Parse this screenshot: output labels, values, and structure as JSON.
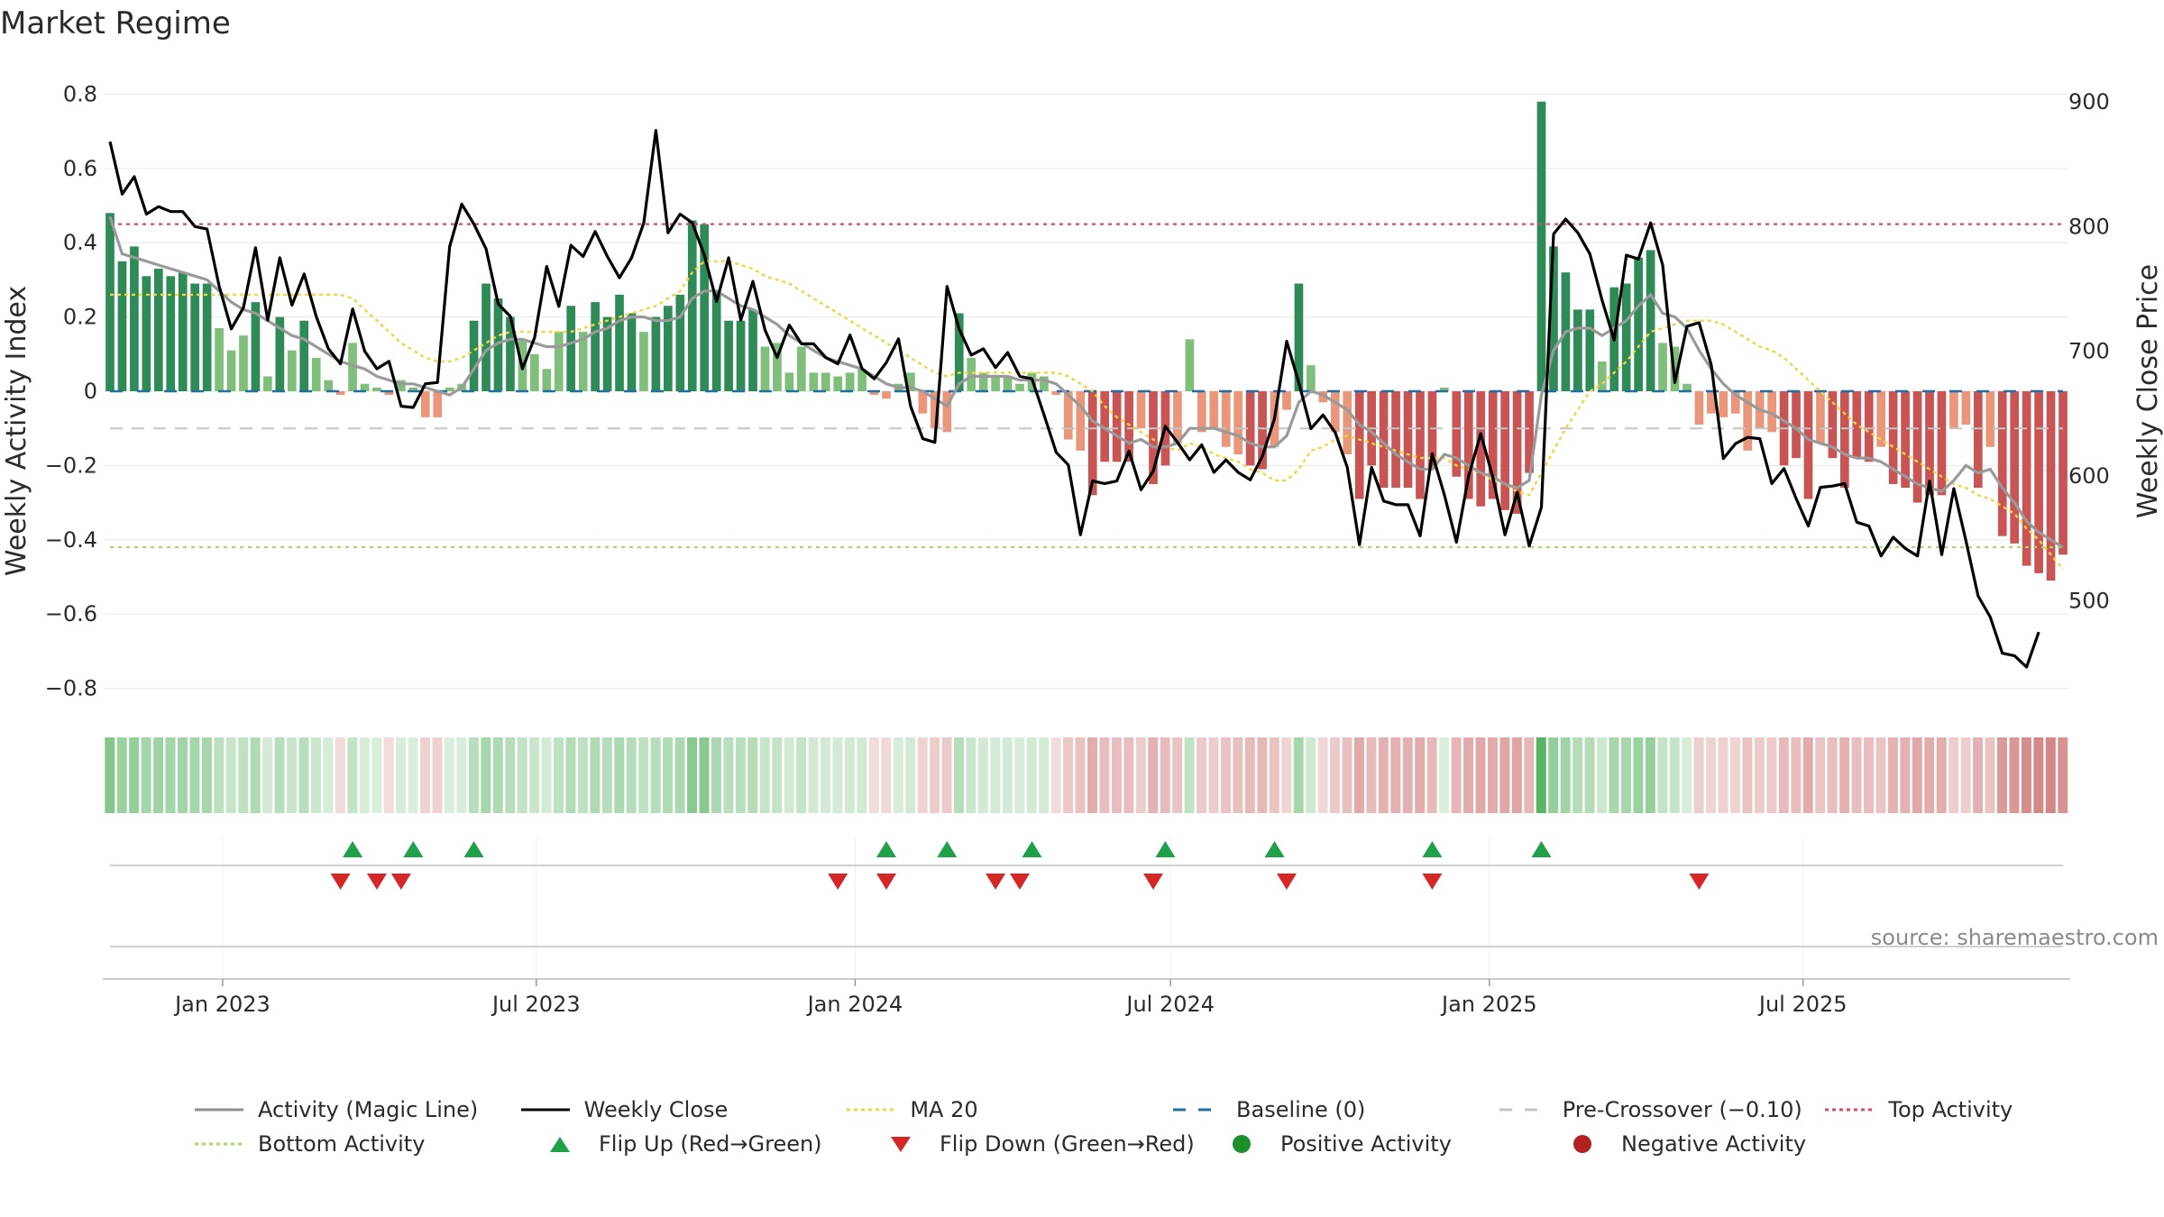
{
  "title": "Market Regime",
  "source": "source: sharemaestro.com",
  "chart_data": {
    "type": "bar+line",
    "title": "Market Regime",
    "ylabel_left": "Weekly Activity Index",
    "ylabel_right": "Weekly Close Price",
    "ylim_left": [
      -0.84,
      0.84
    ],
    "ylim_right": [
      418,
      918
    ],
    "yticks_left": [
      0.8,
      0.6,
      0.4,
      0.2,
      0,
      -0.2,
      -0.4,
      -0.6,
      -0.8
    ],
    "ytick_labels_left": [
      "0.8",
      "0.6",
      "0.4",
      "0.2",
      "0",
      "−0.2",
      "−0.4",
      "−0.6",
      "−0.8"
    ],
    "yticks_right": [
      900,
      800,
      700,
      600,
      500
    ],
    "ytick_labels_right": [
      "900",
      "800",
      "700",
      "600",
      "500"
    ],
    "x_start": "2022-10-28",
    "week_days": 7,
    "x_ticks": [
      {
        "date": "2023-01-01",
        "label": "Jan 2023"
      },
      {
        "date": "2023-07-01",
        "label": "Jul 2023"
      },
      {
        "date": "2024-01-01",
        "label": "Jan 2024"
      },
      {
        "date": "2024-07-01",
        "label": "Jul 2024"
      },
      {
        "date": "2025-01-01",
        "label": "Jan 2025"
      },
      {
        "date": "2025-07-01",
        "label": "Jul 2025"
      }
    ],
    "thresholds": {
      "top": 0.45,
      "bottom": -0.42,
      "baseline": 0,
      "pre_crossover": -0.1
    },
    "activity": [
      0.48,
      0.35,
      0.39,
      0.31,
      0.33,
      0.31,
      0.32,
      0.29,
      0.29,
      0.17,
      0.11,
      0.15,
      0.24,
      0.04,
      0.2,
      0.11,
      0.19,
      0.09,
      0.03,
      -0.01,
      0.13,
      0.02,
      0.01,
      -0.01,
      0.03,
      0.01,
      -0.07,
      -0.07,
      0.01,
      0.02,
      0.19,
      0.29,
      0.25,
      0.2,
      0.14,
      0.1,
      0.06,
      0.16,
      0.23,
      0.16,
      0.24,
      0.2,
      0.26,
      0.21,
      0.16,
      0.2,
      0.23,
      0.26,
      0.46,
      0.45,
      0.27,
      0.19,
      0.19,
      0.22,
      0.12,
      0.13,
      0.05,
      0.12,
      0.05,
      0.05,
      0.04,
      0.05,
      0.06,
      -0.01,
      -0.02,
      0.02,
      0.05,
      -0.06,
      -0.1,
      -0.11,
      0.21,
      0.09,
      0.05,
      0.04,
      0.04,
      0.02,
      0.05,
      0.04,
      -0.01,
      -0.13,
      -0.16,
      -0.28,
      -0.19,
      -0.19,
      -0.19,
      -0.1,
      -0.25,
      -0.2,
      -0.14,
      0.14,
      -0.11,
      -0.1,
      -0.15,
      -0.17,
      -0.2,
      -0.21,
      -0.15,
      -0.05,
      0.29,
      0.07,
      -0.03,
      -0.11,
      -0.17,
      -0.29,
      -0.2,
      -0.26,
      -0.26,
      -0.26,
      -0.29,
      -0.21,
      0.01,
      -0.23,
      -0.29,
      -0.31,
      -0.29,
      -0.32,
      -0.33,
      -0.22,
      0.78,
      0.39,
      0.32,
      0.22,
      0.22,
      0.08,
      0.28,
      0.29,
      0.36,
      0.38,
      0.13,
      0.12,
      0.02,
      -0.09,
      -0.06,
      -0.07,
      -0.06,
      -0.16,
      -0.1,
      -0.11,
      -0.2,
      -0.18,
      -0.29,
      -0.14,
      -0.18,
      -0.26,
      -0.18,
      -0.19,
      -0.15,
      -0.25,
      -0.26,
      -0.3,
      -0.28,
      -0.28,
      -0.1,
      -0.09,
      -0.26,
      -0.15,
      -0.39,
      -0.41,
      -0.47,
      -0.49,
      -0.51,
      -0.44
    ],
    "magic_line": [
      0.47,
      0.37,
      0.36,
      0.35,
      0.34,
      0.33,
      0.32,
      0.31,
      0.3,
      0.27,
      0.24,
      0.22,
      0.21,
      0.19,
      0.17,
      0.15,
      0.14,
      0.12,
      0.1,
      0.08,
      0.07,
      0.06,
      0.04,
      0.03,
      0.02,
      0.02,
      0.01,
      0,
      -0.01,
      0.01,
      0.06,
      0.11,
      0.13,
      0.14,
      0.14,
      0.13,
      0.12,
      0.12,
      0.13,
      0.14,
      0.16,
      0.17,
      0.19,
      0.2,
      0.2,
      0.19,
      0.19,
      0.2,
      0.25,
      0.27,
      0.27,
      0.25,
      0.23,
      0.22,
      0.2,
      0.18,
      0.15,
      0.13,
      0.11,
      0.09,
      0.08,
      0.07,
      0.06,
      0.04,
      0.02,
      0.01,
      0.01,
      0,
      -0.02,
      -0.04,
      0.02,
      0.04,
      0.04,
      0.04,
      0.04,
      0.03,
      0.03,
      0.03,
      0.02,
      -0.01,
      -0.04,
      -0.08,
      -0.1,
      -0.12,
      -0.14,
      -0.13,
      -0.15,
      -0.15,
      -0.14,
      -0.1,
      -0.1,
      -0.1,
      -0.11,
      -0.12,
      -0.14,
      -0.15,
      -0.15,
      -0.12,
      -0.03,
      0,
      -0.01,
      -0.03,
      -0.05,
      -0.09,
      -0.11,
      -0.14,
      -0.17,
      -0.19,
      -0.21,
      -0.21,
      -0.17,
      -0.18,
      -0.2,
      -0.22,
      -0.23,
      -0.25,
      -0.26,
      -0.24,
      -0.01,
      0.11,
      0.16,
      0.17,
      0.17,
      0.15,
      0.17,
      0.19,
      0.23,
      0.26,
      0.21,
      0.2,
      0.17,
      0.11,
      0.06,
      0.02,
      -0.01,
      -0.03,
      -0.05,
      -0.06,
      -0.08,
      -0.1,
      -0.13,
      -0.14,
      -0.15,
      -0.17,
      -0.18,
      -0.18,
      -0.19,
      -0.21,
      -0.23,
      -0.25,
      -0.26,
      -0.27,
      -0.24,
      -0.2,
      -0.22,
      -0.21,
      -0.26,
      -0.3,
      -0.35,
      -0.38,
      -0.4,
      -0.42
    ],
    "ma20": [
      0.26,
      0.26,
      0.26,
      0.26,
      0.26,
      0.26,
      0.26,
      0.26,
      0.26,
      0.26,
      0.26,
      0.26,
      0.26,
      0.26,
      0.26,
      0.26,
      0.26,
      0.26,
      0.26,
      0.26,
      0.25,
      0.22,
      0.19,
      0.16,
      0.13,
      0.11,
      0.09,
      0.08,
      0.08,
      0.09,
      0.11,
      0.13,
      0.15,
      0.16,
      0.16,
      0.16,
      0.16,
      0.16,
      0.16,
      0.17,
      0.18,
      0.19,
      0.2,
      0.21,
      0.22,
      0.23,
      0.25,
      0.27,
      0.32,
      0.35,
      0.35,
      0.35,
      0.34,
      0.33,
      0.31,
      0.3,
      0.29,
      0.27,
      0.25,
      0.23,
      0.21,
      0.19,
      0.17,
      0.15,
      0.13,
      0.11,
      0.09,
      0.07,
      0.05,
      0.04,
      0.05,
      0.05,
      0.05,
      0.05,
      0.05,
      0.05,
      0.05,
      0.05,
      0.05,
      0.04,
      0.02,
      0,
      -0.04,
      -0.07,
      -0.09,
      -0.11,
      -0.13,
      -0.15,
      -0.16,
      -0.14,
      -0.15,
      -0.17,
      -0.18,
      -0.19,
      -0.21,
      -0.22,
      -0.24,
      -0.24,
      -0.21,
      -0.16,
      -0.15,
      -0.13,
      -0.12,
      -0.13,
      -0.14,
      -0.15,
      -0.16,
      -0.17,
      -0.18,
      -0.18,
      -0.18,
      -0.2,
      -0.21,
      -0.22,
      -0.24,
      -0.25,
      -0.27,
      -0.28,
      -0.22,
      -0.16,
      -0.1,
      -0.05,
      0,
      0.02,
      0.05,
      0.08,
      0.12,
      0.16,
      0.17,
      0.18,
      0.19,
      0.19,
      0.19,
      0.18,
      0.16,
      0.14,
      0.12,
      0.11,
      0.09,
      0.06,
      0.03,
      0,
      -0.03,
      -0.06,
      -0.09,
      -0.11,
      -0.13,
      -0.15,
      -0.17,
      -0.19,
      -0.21,
      -0.23,
      -0.25,
      -0.26,
      -0.28,
      -0.29,
      -0.31,
      -0.33,
      -0.37,
      -0.4,
      -0.44,
      -0.48
    ],
    "weekly_close": [
      868,
      826,
      840,
      810,
      816,
      812,
      812,
      800,
      798,
      752,
      718,
      735,
      783,
      725,
      775,
      737,
      762,
      728,
      702,
      690,
      734,
      700,
      686,
      692,
      656,
      655,
      674,
      675,
      784,
      818,
      802,
      782,
      738,
      728,
      686,
      711,
      768,
      736,
      785,
      776,
      796,
      776,
      759,
      775,
      803,
      877,
      795,
      810,
      803,
      777,
      740,
      775,
      725,
      756,
      717,
      695,
      721,
      706,
      706,
      695,
      690,
      713,
      686,
      678,
      691,
      710,
      656,
      630,
      627,
      752,
      718,
      697,
      702,
      687,
      699,
      680,
      678,
      649,
      619,
      609,
      553,
      596,
      594,
      596,
      620,
      589,
      604,
      640,
      627,
      613,
      625,
      603,
      613,
      603,
      597,
      616,
      646,
      708,
      675,
      638,
      649,
      635,
      607,
      545,
      607,
      580,
      577,
      577,
      552,
      618,
      585,
      547,
      600,
      634,
      599,
      553,
      587,
      544,
      575,
      794,
      806,
      795,
      778,
      741,
      709,
      777,
      774,
      803,
      769,
      675,
      720,
      723,
      689,
      614,
      626,
      631,
      630,
      594,
      606,
      582,
      560,
      591,
      592,
      594,
      563,
      560,
      536,
      551,
      542,
      536,
      596,
      537,
      590,
      548,
      504,
      487,
      458,
      456,
      447,
      475
    ],
    "flip_up_weeks": [
      20,
      25,
      30,
      64,
      69,
      76,
      87,
      96,
      109,
      118
    ],
    "flip_down_weeks": [
      19,
      22,
      24,
      60,
      64,
      73,
      75,
      86,
      97,
      109,
      131
    ],
    "legend": [
      {
        "label": "Activity (Magic Line)",
        "icon": "line-solid",
        "color": "#8e8e8e"
      },
      {
        "label": "Weekly Close",
        "icon": "line-solid",
        "color": "#000000"
      },
      {
        "label": "MA 20",
        "icon": "line-dotted",
        "color": "#f2d43d"
      },
      {
        "label": "Baseline (0)",
        "icon": "line-dashed",
        "color": "#1f6fa6"
      },
      {
        "label": "Pre-Crossover (−0.10)",
        "icon": "line-dashed",
        "color": "#c4c4c4"
      },
      {
        "label": "Top Activity",
        "icon": "line-dotted",
        "color": "#d24d64"
      },
      {
        "label": "Bottom Activity",
        "icon": "line-dotted",
        "color": "#a6d96a"
      },
      {
        "label": "Flip Up (Red→Green)",
        "icon": "triangle-up-marker",
        "color": "#21a04a"
      },
      {
        "label": "Flip Down (Green→Red)",
        "icon": "triangle-down-marker",
        "color": "#d62728"
      },
      {
        "label": "Positive Activity",
        "icon": "circle-marker",
        "color": "#1a8f2a"
      },
      {
        "label": "Negative Activity",
        "icon": "circle-marker",
        "color": "#b22222"
      }
    ]
  },
  "colors": {
    "pos_strong": "#2e8b57",
    "pos_light": "#7fbf7b",
    "neg_strong": "#c95454",
    "neg_light": "#e9967a",
    "grid": "#e6e6e6",
    "axis": "#cccccc"
  }
}
